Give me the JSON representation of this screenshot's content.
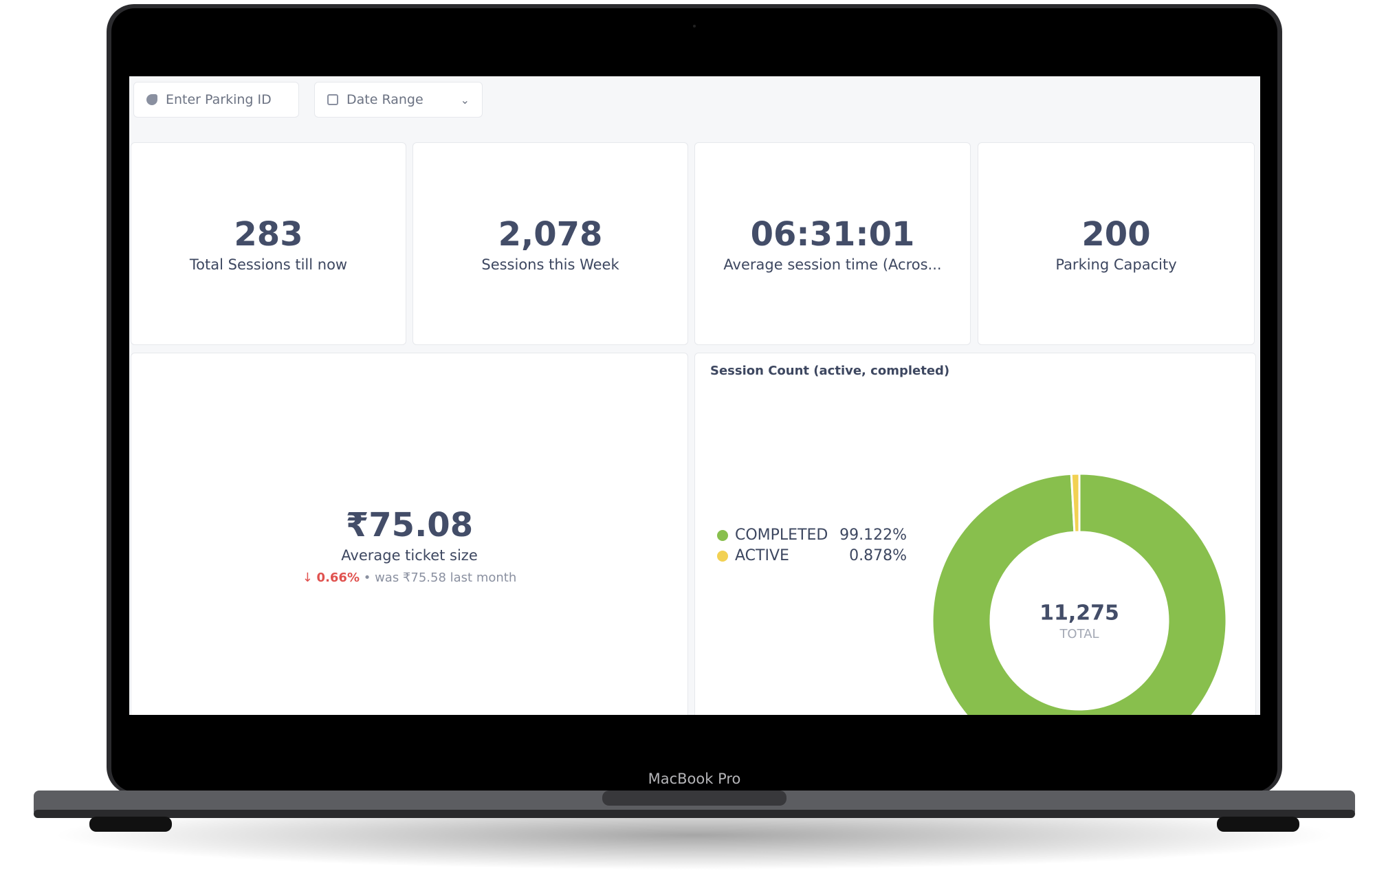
{
  "filters": {
    "parking_id": "Enter Parking ID",
    "date_range": "Date Range"
  },
  "cards": [
    {
      "value": "283",
      "label": "Total Sessions till now"
    },
    {
      "value": "2,078",
      "label": "Sessions this Week"
    },
    {
      "value": "06:31:01",
      "label": "Average session time (Acros..."
    },
    {
      "value": "200",
      "label": "Parking Capacity"
    }
  ],
  "ticket": {
    "value": "₹75.08",
    "label": "Average ticket size",
    "change": "0.66%",
    "previous": "was ₹75.58  last month"
  },
  "chart_data": {
    "type": "donut",
    "title": "Session Count (active, completed)",
    "total": "11,275",
    "total_label": "TOTAL",
    "series": [
      {
        "name": "COMPLETED",
        "value": 99.122,
        "value_label": "99.122%",
        "color": "#88bf4d"
      },
      {
        "name": "ACTIVE",
        "value": 0.878,
        "value_label": "0.878%",
        "color": "#f2d153"
      }
    ]
  },
  "device_label": "MacBook Pro"
}
